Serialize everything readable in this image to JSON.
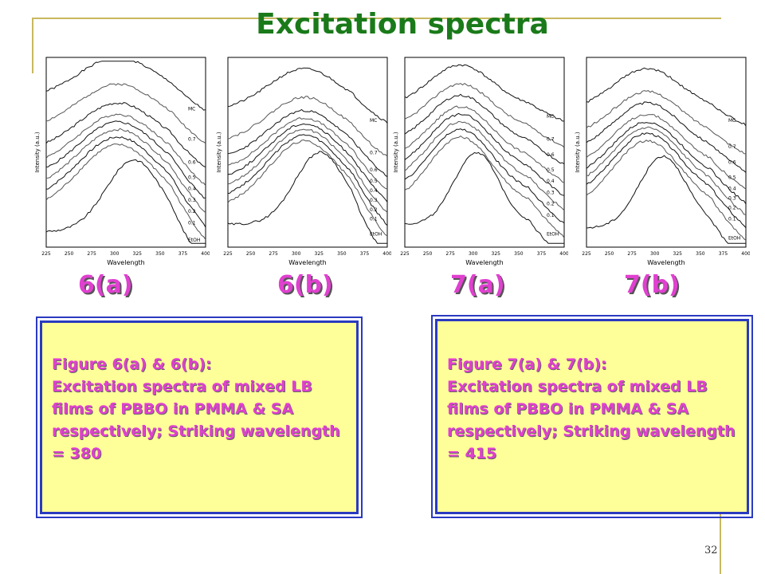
{
  "slide": {
    "title": "Excitation spectra",
    "page_number": "32",
    "frame_color": "#c8b860",
    "title_color": "#1a7a1a",
    "label_color": "#e040d0",
    "caption_bg": "#ffff99",
    "caption_border": "#2a3ac0"
  },
  "figure_labels": [
    "6(a)",
    "6(b)",
    "7(a)",
    "7(b)"
  ],
  "captions": [
    {
      "heading": "Figure 6(a) & 6(b):",
      "body": "Excitation spectra of mixed LB films of PBBO in PMMA & SA respectively; Striking wavelength = 380"
    },
    {
      "heading": "Figure 7(a) & 7(b):",
      "body": "Excitation spectra of mixed LB films of PBBO in PMMA & SA respectively; Striking wavelength = 415"
    }
  ],
  "chart_data": [
    {
      "type": "line",
      "panel": "6(a)",
      "xlabel": "Wavelength",
      "ylabel": "Intensity (a.u.)",
      "xlim": [
        225,
        400
      ],
      "x_ticks": [
        "225",
        "250",
        "275",
        "300",
        "325",
        "350",
        "375",
        "400"
      ],
      "series": [
        {
          "name": "MC"
        },
        {
          "name": "0.7"
        },
        {
          "name": "0.6"
        },
        {
          "name": "0.5"
        },
        {
          "name": "0.4"
        },
        {
          "name": "0.3"
        },
        {
          "name": "0.2"
        },
        {
          "name": "0.1"
        },
        {
          "name": "EtOH"
        }
      ]
    },
    {
      "type": "line",
      "panel": "6(b)",
      "xlabel": "Wavelength",
      "ylabel": "Intensity (a.u.)",
      "xlim": [
        225,
        400
      ],
      "x_ticks": [
        "225",
        "250",
        "275",
        "300",
        "325",
        "350",
        "375",
        "400"
      ],
      "series": [
        {
          "name": "MC"
        },
        {
          "name": "0.7"
        },
        {
          "name": "0.6"
        },
        {
          "name": "0.5"
        },
        {
          "name": "0.4"
        },
        {
          "name": "0.3"
        },
        {
          "name": "0.2"
        },
        {
          "name": "0.1"
        },
        {
          "name": "EtOH"
        }
      ]
    },
    {
      "type": "line",
      "panel": "7(a)",
      "xlabel": "Wavelength",
      "ylabel": "Intensity (a.u.)",
      "xlim": [
        225,
        400
      ],
      "x_ticks": [
        "225",
        "250",
        "275",
        "300",
        "325",
        "350",
        "375",
        "400"
      ],
      "series": [
        {
          "name": "MC"
        },
        {
          "name": "0.7"
        },
        {
          "name": "0.6"
        },
        {
          "name": "0.5"
        },
        {
          "name": "0.4"
        },
        {
          "name": "0.3"
        },
        {
          "name": "0.2"
        },
        {
          "name": "0.1"
        },
        {
          "name": "EtOH"
        }
      ]
    },
    {
      "type": "line",
      "panel": "7(b)",
      "xlabel": "Wavelength",
      "ylabel": "Intensity (a.u.)",
      "xlim": [
        225,
        400
      ],
      "x_ticks": [
        "225",
        "250",
        "275",
        "300",
        "325",
        "350",
        "375",
        "400"
      ],
      "series": [
        {
          "name": "MC"
        },
        {
          "name": "0.7"
        },
        {
          "name": "0.6"
        },
        {
          "name": "0.5"
        },
        {
          "name": "0.4"
        },
        {
          "name": "0.3"
        },
        {
          "name": "0.2"
        },
        {
          "name": "0.1"
        },
        {
          "name": "EtOH"
        }
      ]
    }
  ]
}
